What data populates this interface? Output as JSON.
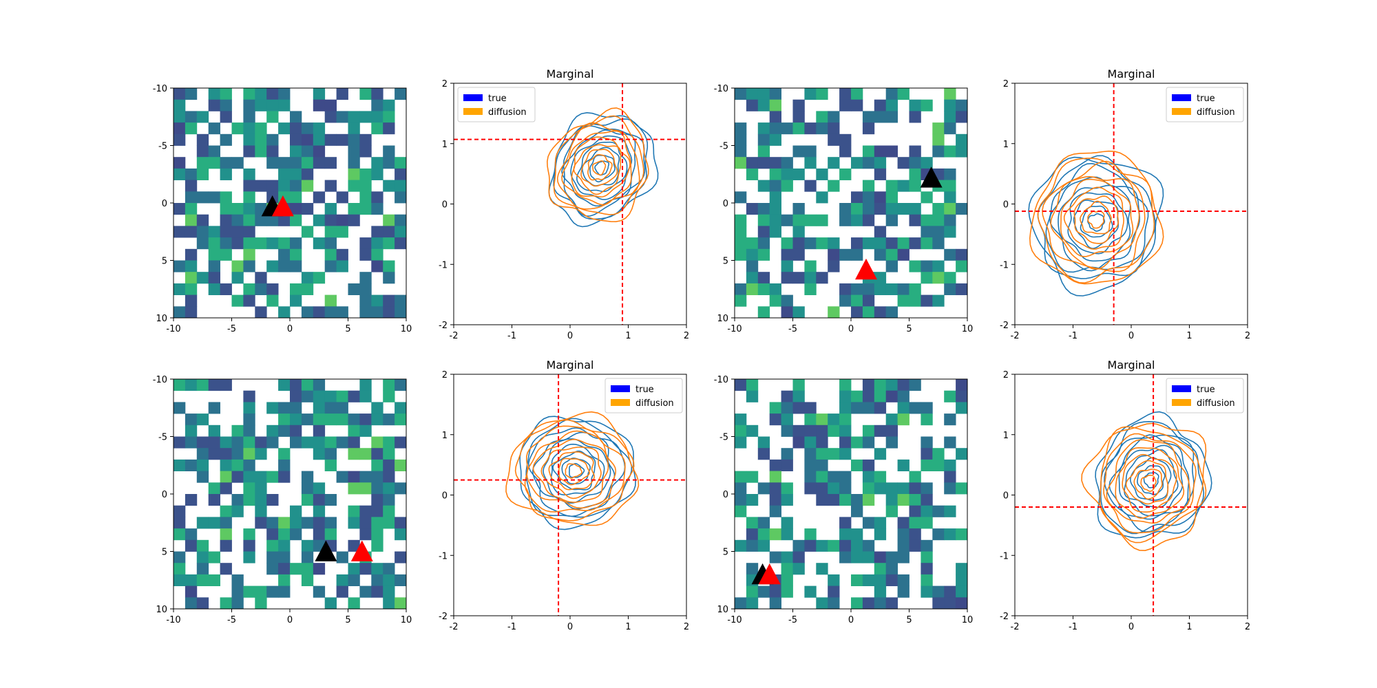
{
  "colors": {
    "true": "#1f77b4",
    "diffusion": "#ff7f0e",
    "legend_true": "#0000ff",
    "legend_diffusion": "#ffa500",
    "crosshair": "#ff0000",
    "triangle_true": "#000000",
    "triangle_pred": "#ff0000",
    "grid_palette": [
      "#3b528b",
      "#2c728e",
      "#21918c",
      "#28ae80",
      "#5ec962",
      "#3e4a89"
    ]
  },
  "legend": {
    "true_label": "true",
    "diffusion_label": "diffusion"
  },
  "chart_data": [
    {
      "type": "heatmap",
      "panel": "row1-col1",
      "xlim": [
        -10,
        10
      ],
      "ylim": [
        10,
        -10
      ],
      "x_ticks": [
        "-10",
        "-5",
        "0",
        "5",
        "10"
      ],
      "y_ticks": [
        "-10",
        "-5",
        "0",
        "5",
        "10"
      ],
      "grid_size": 20,
      "markers": [
        {
          "name": "true",
          "x": -1.5,
          "y": 0.3
        },
        {
          "name": "prediction",
          "x": -0.6,
          "y": 0.3
        }
      ]
    },
    {
      "type": "line",
      "panel": "row1-col2",
      "title": "Marginal",
      "xlim": [
        -2,
        2
      ],
      "ylim": [
        -2,
        2
      ],
      "x_ticks": [
        "-2",
        "-1",
        "0",
        "1",
        "2"
      ],
      "y_ticks": [
        "-2",
        "-1",
        "0",
        "1",
        "2"
      ],
      "legend_position": "top-left",
      "crosshair": {
        "x": 0.9,
        "y": 1.07
      },
      "series": [
        {
          "name": "true",
          "center": [
            0.55,
            0.6
          ],
          "sx": 0.45,
          "sy": 0.45,
          "rho": 0.35
        },
        {
          "name": "diffusion",
          "center": [
            0.5,
            0.6
          ],
          "sx": 0.42,
          "sy": 0.45,
          "rho": 0.35
        }
      ]
    },
    {
      "type": "heatmap",
      "panel": "row1-col3",
      "xlim": [
        -10,
        10
      ],
      "ylim": [
        10,
        -10
      ],
      "x_ticks": [
        "-10",
        "-5",
        "0",
        "5",
        "10"
      ],
      "y_ticks": [
        "-10",
        "-5",
        "0",
        "5",
        "10"
      ],
      "grid_size": 20,
      "markers": [
        {
          "name": "true",
          "x": 6.9,
          "y": -2.2
        },
        {
          "name": "prediction",
          "x": 1.3,
          "y": 5.8
        }
      ]
    },
    {
      "type": "line",
      "panel": "row1-col4",
      "title": "Marginal",
      "xlim": [
        -2,
        2
      ],
      "ylim": [
        -2,
        2
      ],
      "x_ticks": [
        "-2",
        "-1",
        "0",
        "1",
        "2"
      ],
      "y_ticks": [
        "-2",
        "-1",
        "0",
        "1",
        "2"
      ],
      "legend_position": "top-right",
      "crosshair": {
        "x": -0.3,
        "y": -0.12
      },
      "series": [
        {
          "name": "true",
          "center": [
            -0.6,
            -0.3
          ],
          "sx": 0.55,
          "sy": 0.55,
          "rho": 0.05
        },
        {
          "name": "diffusion",
          "center": [
            -0.6,
            -0.25
          ],
          "sx": 0.55,
          "sy": 0.55,
          "rho": 0.05
        }
      ]
    },
    {
      "type": "heatmap",
      "panel": "row2-col1",
      "xlim": [
        -10,
        10
      ],
      "ylim": [
        10,
        -10
      ],
      "x_ticks": [
        "-10",
        "-5",
        "0",
        "5",
        "10"
      ],
      "y_ticks": [
        "-10",
        "-5",
        "0",
        "5",
        "10"
      ],
      "grid_size": 20,
      "markers": [
        {
          "name": "true",
          "x": 3.1,
          "y": 5.0
        },
        {
          "name": "prediction",
          "x": 6.2,
          "y": 5.0
        }
      ]
    },
    {
      "type": "line",
      "panel": "row2-col2",
      "title": "Marginal",
      "xlim": [
        -2,
        2
      ],
      "ylim": [
        -2,
        2
      ],
      "x_ticks": [
        "-2",
        "-1",
        "0",
        "1",
        "2"
      ],
      "y_ticks": [
        "-2",
        "-1",
        "0",
        "1",
        "2"
      ],
      "legend_position": "top-right",
      "crosshair": {
        "x": -0.2,
        "y": 0.25
      },
      "series": [
        {
          "name": "true",
          "center": [
            0.1,
            0.4
          ],
          "sx": 0.5,
          "sy": 0.45,
          "rho": 0.0
        },
        {
          "name": "diffusion",
          "center": [
            0.05,
            0.4
          ],
          "sx": 0.55,
          "sy": 0.45,
          "rho": 0.0
        }
      ]
    },
    {
      "type": "heatmap",
      "panel": "row2-col3",
      "xlim": [
        -10,
        10
      ],
      "ylim": [
        10,
        -10
      ],
      "x_ticks": [
        "-10",
        "-5",
        "0",
        "5",
        "10"
      ],
      "y_ticks": [
        "-10",
        "-5",
        "0",
        "5",
        "10"
      ],
      "grid_size": 20,
      "markers": [
        {
          "name": "true",
          "x": -7.6,
          "y": 7.0
        },
        {
          "name": "prediction",
          "x": -7.0,
          "y": 7.0
        }
      ]
    },
    {
      "type": "line",
      "panel": "row2-col4",
      "title": "Marginal",
      "xlim": [
        -2,
        2
      ],
      "ylim": [
        -2,
        2
      ],
      "x_ticks": [
        "-2",
        "-1",
        "0",
        "1",
        "2"
      ],
      "y_ticks": [
        "-2",
        "-1",
        "0",
        "1",
        "2"
      ],
      "legend_position": "top-right",
      "crosshair": {
        "x": 0.38,
        "y": -0.2
      },
      "series": [
        {
          "name": "true",
          "center": [
            0.35,
            0.25
          ],
          "sx": 0.45,
          "sy": 0.55,
          "rho": 0.55
        },
        {
          "name": "diffusion",
          "center": [
            0.3,
            0.2
          ],
          "sx": 0.45,
          "sy": 0.58,
          "rho": 0.55
        }
      ]
    }
  ]
}
